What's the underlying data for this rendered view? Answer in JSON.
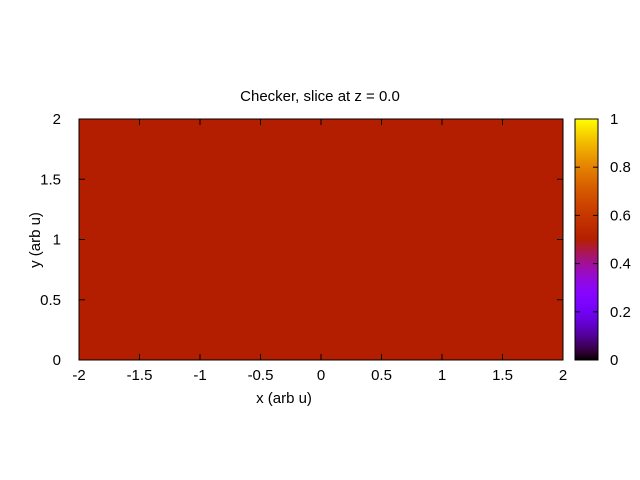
{
  "chart_data": {
    "type": "heatmap",
    "title": "Checker, slice at z = 0.0",
    "xlabel": "x (arb u)",
    "ylabel": "y (arb u)",
    "xlim": [
      -2,
      2
    ],
    "ylim": [
      0,
      2
    ],
    "x_ticks": [
      "-2",
      "-1.5",
      "-1",
      "-0.5",
      "0",
      "0.5",
      "1",
      "1.5",
      "2"
    ],
    "y_ticks": [
      "0",
      "0.5",
      "1",
      "1.5",
      "2"
    ],
    "value": 0.55,
    "fill_color": "#b31e00",
    "colorbar": {
      "range": [
        0,
        1
      ],
      "ticks": [
        "0",
        "0.2",
        "0.4",
        "0.6",
        "0.8",
        "1"
      ],
      "colormap": "gnuplot-default (black-purple-red-yellow)"
    }
  }
}
